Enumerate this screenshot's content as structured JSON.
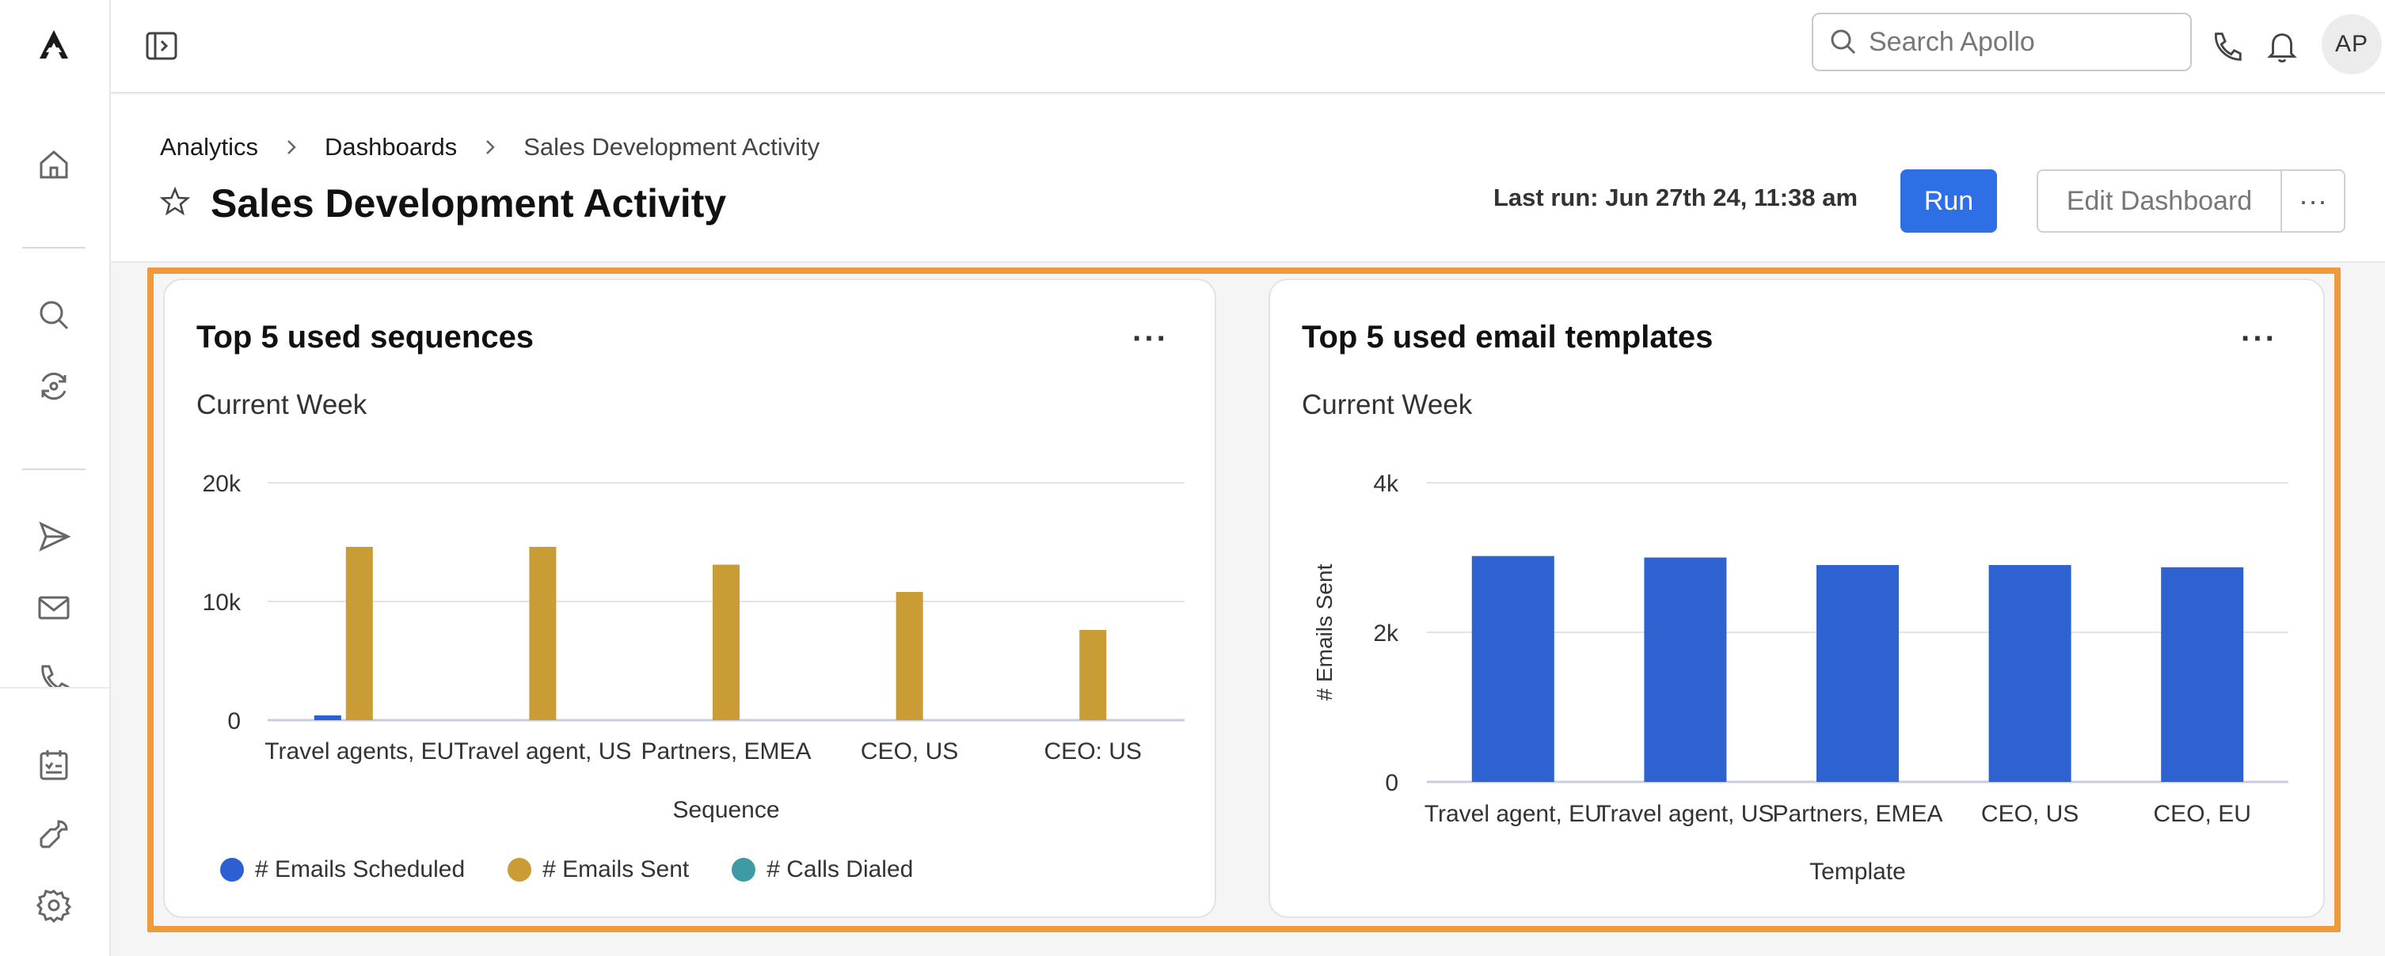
{
  "app": {
    "brand": "Apollo"
  },
  "sidebar": {
    "top_icons": [
      "logo-icon"
    ],
    "icons": [
      "home-icon",
      "search-icon",
      "refresh-icon",
      "send-icon",
      "mail-icon",
      "phone-icon",
      "tasks-icon",
      "tools-icon",
      "settings-icon"
    ]
  },
  "topbar": {
    "search_placeholder": "Search Apollo",
    "avatar_initials": "AP"
  },
  "breadcrumb": [
    "Analytics",
    "Dashboards",
    "Sales Development Activity"
  ],
  "page": {
    "title": "Sales Development Activity",
    "last_run": "Last run: Jun 27th 24, 11:38 am",
    "run_label": "Run",
    "edit_label": "Edit Dashboard",
    "more_label": "···"
  },
  "colors": {
    "accent": "#2e6fe6",
    "highlight": "#ed9a3c",
    "emails_scheduled": "#2c5fd1",
    "emails_sent": "#c99c35",
    "calls_dialed": "#3e9aa3",
    "bar_blue": "#2e62d1"
  },
  "cards": [
    {
      "title": "Top 5 used sequences",
      "subtitle": "Current Week",
      "more": "···"
    },
    {
      "title": "Top 5 used email templates",
      "subtitle": "Current Week",
      "more": "···"
    }
  ],
  "chart_data": [
    {
      "type": "bar",
      "title": "Top 5 used sequences",
      "subtitle": "Current Week",
      "xlabel": "Sequence",
      "ylabel": "",
      "ylim": [
        0,
        20000
      ],
      "yticks": [
        "0",
        "10k",
        "20k"
      ],
      "categories": [
        "Travel agents, EU",
        "Travel agent, US",
        "Partners, EMEA",
        "CEO, US",
        "CEO: US"
      ],
      "series": [
        {
          "name": "# Emails Scheduled",
          "color": "#2c5fd1",
          "values": [
            400,
            0,
            0,
            0,
            0
          ]
        },
        {
          "name": "# Emails Sent",
          "color": "#c99c35",
          "values": [
            14600,
            14600,
            13100,
            10800,
            7600
          ]
        },
        {
          "name": "# Calls Dialed",
          "color": "#3e9aa3",
          "values": [
            0,
            0,
            0,
            0,
            0
          ]
        }
      ],
      "legend": "bottom-left",
      "grid": true
    },
    {
      "type": "bar",
      "title": "Top 5 used email templates",
      "subtitle": "Current Week",
      "xlabel": "Template",
      "ylabel": "# Emails Sent",
      "ylim": [
        0,
        4000
      ],
      "yticks": [
        "0",
        "2k",
        "4k"
      ],
      "categories": [
        "Travel agent, EU",
        "Travel agent, US",
        "Partners, EMEA",
        "CEO, US",
        "CEO, EU"
      ],
      "series": [
        {
          "name": "# Emails Sent",
          "color": "#2e62d1",
          "values": [
            3020,
            3000,
            2900,
            2900,
            2870
          ]
        }
      ],
      "grid": true
    }
  ]
}
